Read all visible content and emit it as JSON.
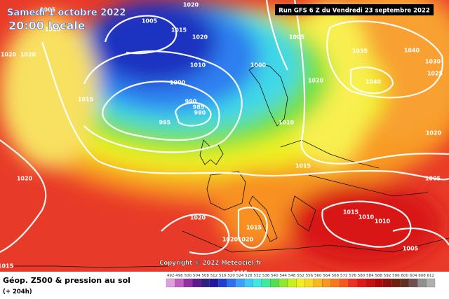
{
  "header": {
    "valid_date": "Samedi 1 octobre 2022",
    "valid_time": "20:00 locale",
    "run": "Run GFS 6 Z du Vendredi 23 septembre 2022"
  },
  "footer": {
    "title": "Géop. Z500 & pression au sol",
    "lead_time": "(+ 204h)",
    "copyright": "Copyright © 2022 Meteociel.fr"
  },
  "isobar_labels": [
    1005,
    1010,
    1020,
    1020,
    1015,
    1005,
    1020,
    1015,
    1020,
    1010,
    1000,
    990,
    985,
    980,
    995,
    1000,
    1010,
    1005,
    1020,
    1035,
    1040,
    1040,
    1030,
    1025,
    1010,
    1020,
    1015,
    1005,
    1020,
    1020,
    1015,
    1015,
    1010,
    1010,
    1020,
    1020,
    1005,
    1015,
    1015
  ],
  "scale": {
    "labels": [
      492,
      496,
      500,
      504,
      508,
      512,
      516,
      520,
      524,
      528,
      532,
      536,
      540,
      544,
      548,
      552,
      556,
      560,
      564,
      568,
      572,
      576,
      580,
      584,
      588,
      592,
      596,
      600,
      604,
      608,
      612
    ],
    "colors": [
      "#e0a0e0",
      "#c060c0",
      "#9030a0",
      "#601890",
      "#302080",
      "#1a1aa0",
      "#1f3fd0",
      "#2f6ff0",
      "#3f9ff8",
      "#40c8f8",
      "#40e8e0",
      "#40e8a0",
      "#50e050",
      "#90e830",
      "#c8f020",
      "#f0f020",
      "#f8d820",
      "#f8b820",
      "#f89820",
      "#f87820",
      "#f85820",
      "#f03020",
      "#e01818",
      "#c81010",
      "#b00808",
      "#901010",
      "#702010",
      "#603020",
      "#705050",
      "#909090",
      "#b0b0b0"
    ]
  }
}
